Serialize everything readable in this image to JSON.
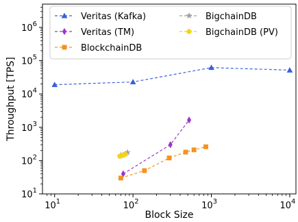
{
  "chart_data": {
    "type": "line",
    "xlabel": "Block Size",
    "ylabel": "Throughput [TPS]",
    "x_scale": "log",
    "y_scale": "log",
    "xlim": [
      7,
      12000
    ],
    "ylim": [
      10,
      5000000
    ],
    "x_ticks": [
      {
        "value": 10,
        "base": "10",
        "exp": "1"
      },
      {
        "value": 100,
        "base": "10",
        "exp": "2"
      },
      {
        "value": 1000,
        "base": "10",
        "exp": "3"
      },
      {
        "value": 10000,
        "base": "10",
        "exp": "4"
      }
    ],
    "y_ticks": [
      {
        "value": 10,
        "base": "10",
        "exp": "1"
      },
      {
        "value": 100,
        "base": "10",
        "exp": "2"
      },
      {
        "value": 1000,
        "base": "10",
        "exp": "3"
      },
      {
        "value": 10000,
        "base": "10",
        "exp": "4"
      },
      {
        "value": 100000,
        "base": "10",
        "exp": "5"
      },
      {
        "value": 1000000,
        "base": "10",
        "exp": "6"
      }
    ],
    "grid": false,
    "legend_position": "top",
    "series": [
      {
        "name": "Veritas (Kafka)",
        "color": "#3a5fd9",
        "marker": "triangle",
        "x": [
          10,
          100,
          1000,
          10000
        ],
        "y": [
          19000,
          23000,
          62000,
          52000
        ]
      },
      {
        "name": "Veritas (TM)",
        "color": "#9b35c9",
        "marker": "diamond",
        "x": [
          75,
          300,
          520
        ],
        "y": [
          40,
          300,
          1650
        ]
      },
      {
        "name": "BlockchainDB",
        "color": "#f6921e",
        "marker": "square",
        "x": [
          70,
          140,
          290,
          470,
          600,
          850
        ],
        "y": [
          30,
          50,
          120,
          180,
          210,
          260
        ]
      },
      {
        "name": "BigchainDB",
        "color": "#9e9e9e",
        "marker": "star",
        "x": [
          70,
          75,
          80,
          85
        ],
        "y": [
          145,
          150,
          160,
          175
        ]
      },
      {
        "name": "BigchainDB (PV)",
        "color": "#f2d418",
        "marker": "circle",
        "x": [
          68,
          72,
          76,
          80
        ],
        "y": [
          135,
          140,
          148,
          155
        ]
      }
    ]
  }
}
